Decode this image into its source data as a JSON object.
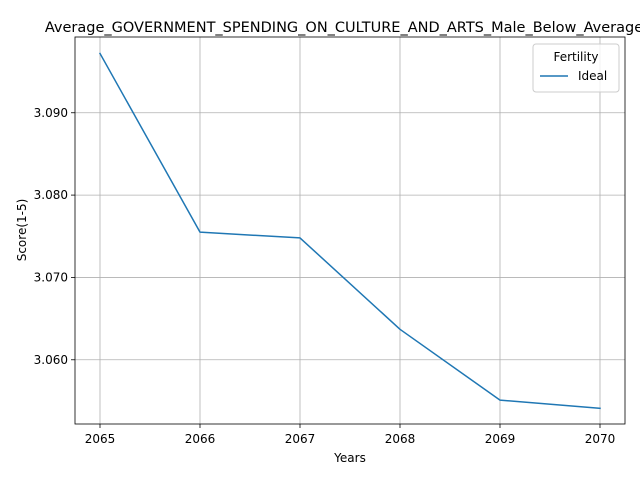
{
  "chart_data": {
    "type": "line",
    "title": "Average_GOVERNMENT_SPENDING_ON_CULTURE_AND_ARTS_Male_Below_Average",
    "xlabel": "Years",
    "ylabel": "Score(1-5)",
    "x": [
      2065,
      2066,
      2067,
      2068,
      2069,
      2070
    ],
    "xticks": [
      "2065",
      "2066",
      "2067",
      "2068",
      "2069",
      "2070"
    ],
    "yticks": [
      "3.060",
      "3.070",
      "3.080",
      "3.090"
    ],
    "ytick_values": [
      3.06,
      3.07,
      3.08,
      3.09
    ],
    "ylim": [
      3.0522,
      3.0992
    ],
    "xlim": [
      2064.75,
      2070.25
    ],
    "grid": true,
    "legend": {
      "title": "Fertility",
      "placement": "top-right"
    },
    "series": [
      {
        "name": "Ideal",
        "color": "#1f77b4",
        "values": [
          3.0972,
          3.0755,
          3.0748,
          3.0637,
          3.0551,
          3.0541
        ]
      }
    ]
  }
}
